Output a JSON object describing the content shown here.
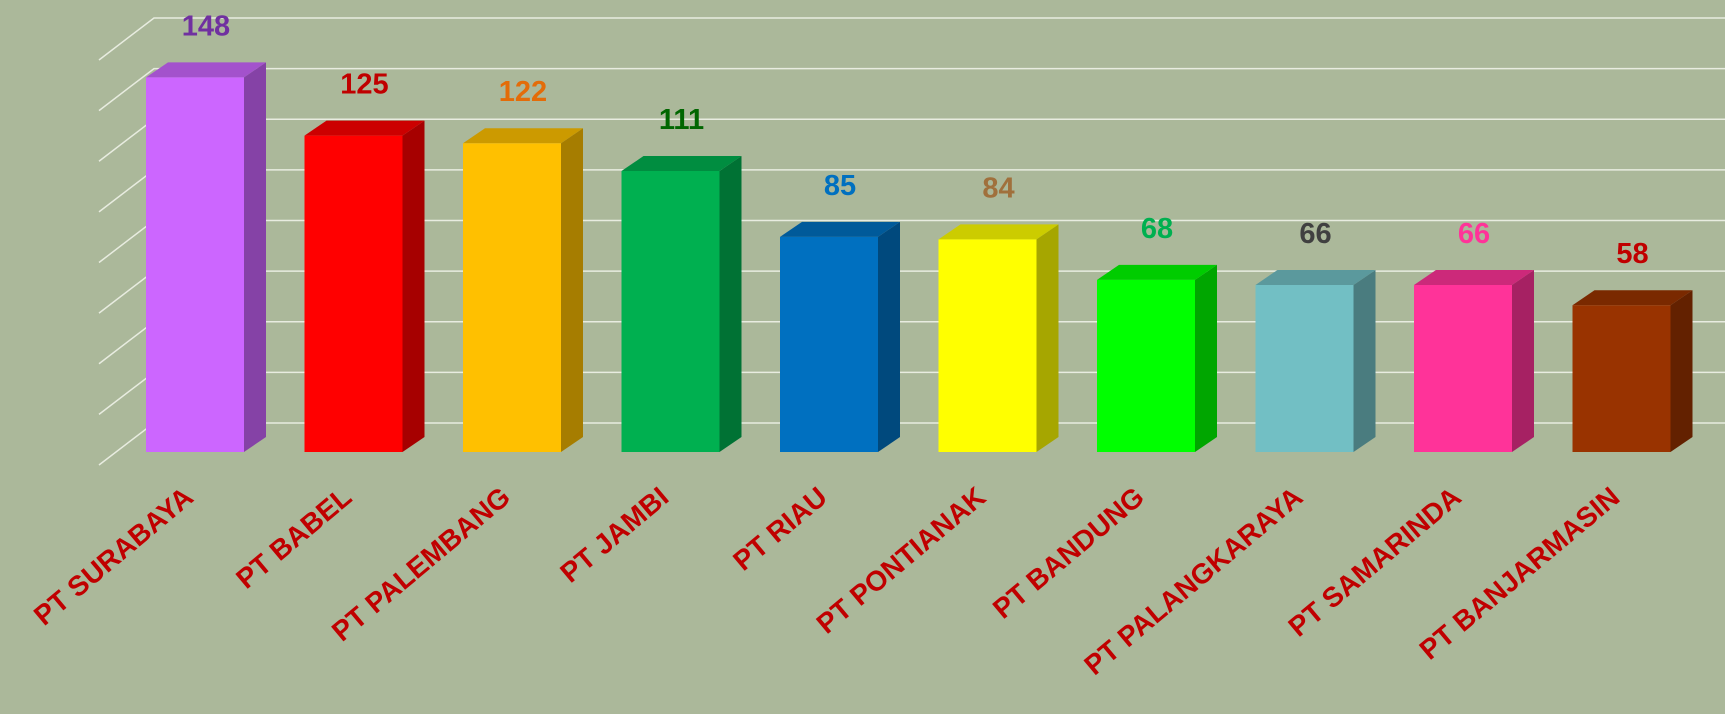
{
  "chart_data": {
    "type": "bar3d",
    "categories": [
      "PT SURABAYA",
      "PT BABEL",
      "PT PALEMBANG",
      "PT JAMBI",
      "PT RIAU",
      "PT PONTIANAK",
      "PT BANDUNG",
      "PT PALANGKARAYA",
      "PT SAMARINDA",
      "PT BANJARMASIN"
    ],
    "values": [
      148,
      125,
      122,
      111,
      85,
      84,
      68,
      66,
      66,
      58
    ],
    "colors": [
      "#cc66ff",
      "#ff0000",
      "#ffc000",
      "#00b050",
      "#0070c0",
      "#ffff00",
      "#00ff00",
      "#72bfc4",
      "#ff3399",
      "#993300"
    ],
    "value_label_colors": [
      "#7030a0",
      "#c00000",
      "#e36c09",
      "#006600",
      "#0070c0",
      "#a0703c",
      "#00b050",
      "#404040",
      "#ff3399",
      "#c00000"
    ],
    "category_label_color": "#c00000",
    "ylim": [
      0,
      160
    ],
    "yticks": [
      0,
      20,
      40,
      60,
      80,
      100,
      120,
      140,
      160
    ],
    "grid": true
  }
}
